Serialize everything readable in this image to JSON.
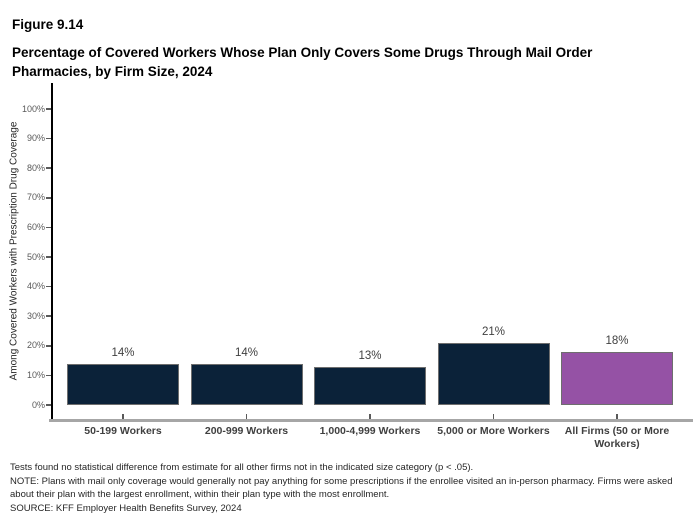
{
  "figure_label": "Figure 9.14",
  "title": "Percentage of Covered Workers Whose Plan Only Covers Some Drugs Through Mail Order Pharmacies, by Firm Size, 2024",
  "chart_data": {
    "type": "bar",
    "title": "Percentage of Covered Workers Whose Plan Only Covers Some Drugs Through Mail Order Pharmacies, by Firm Size, 2024",
    "categories": [
      "50-199 Workers",
      "200-999 Workers",
      "1,000-4,999 Workers",
      "5,000 or More Workers",
      "All Firms (50 or More Workers)"
    ],
    "values": [
      14,
      14,
      13,
      21,
      18
    ],
    "value_labels": [
      "14%",
      "14%",
      "13%",
      "21%",
      "18%"
    ],
    "xlabel": "",
    "ylabel": "Among Covered Workers with Prescription Drug Coverage",
    "ylim": [
      0,
      100
    ],
    "yticks": [
      0,
      10,
      20,
      30,
      40,
      50,
      60,
      70,
      80,
      90,
      100
    ],
    "ytick_labels": [
      "0%",
      "10%",
      "20%",
      "30%",
      "40%",
      "50%",
      "60%",
      "70%",
      "80%",
      "90%",
      "100%"
    ],
    "grid": false,
    "legend": false,
    "bar_colors": [
      "#0b2239",
      "#0b2239",
      "#0b2239",
      "#0b2239",
      "#9552a5"
    ],
    "colors": {
      "navy": "#0b2239",
      "purple": "#9552a5",
      "axis_line": "#000000",
      "baseline": "#a6a6a6",
      "tick_label": "#595959",
      "category_label": "#404040"
    }
  },
  "footnotes": [
    "Tests found no statistical difference from estimate for all other firms not in the indicated size category (p < .05).",
    "NOTE: Plans with mail only coverage would generally not pay anything for some prescriptions if the enrollee visited an in-person pharmacy.  Firms were asked about their plan with the largest enrollment, within their plan type with the most enrollment.",
    "SOURCE: KFF Employer Health Benefits Survey, 2024"
  ]
}
